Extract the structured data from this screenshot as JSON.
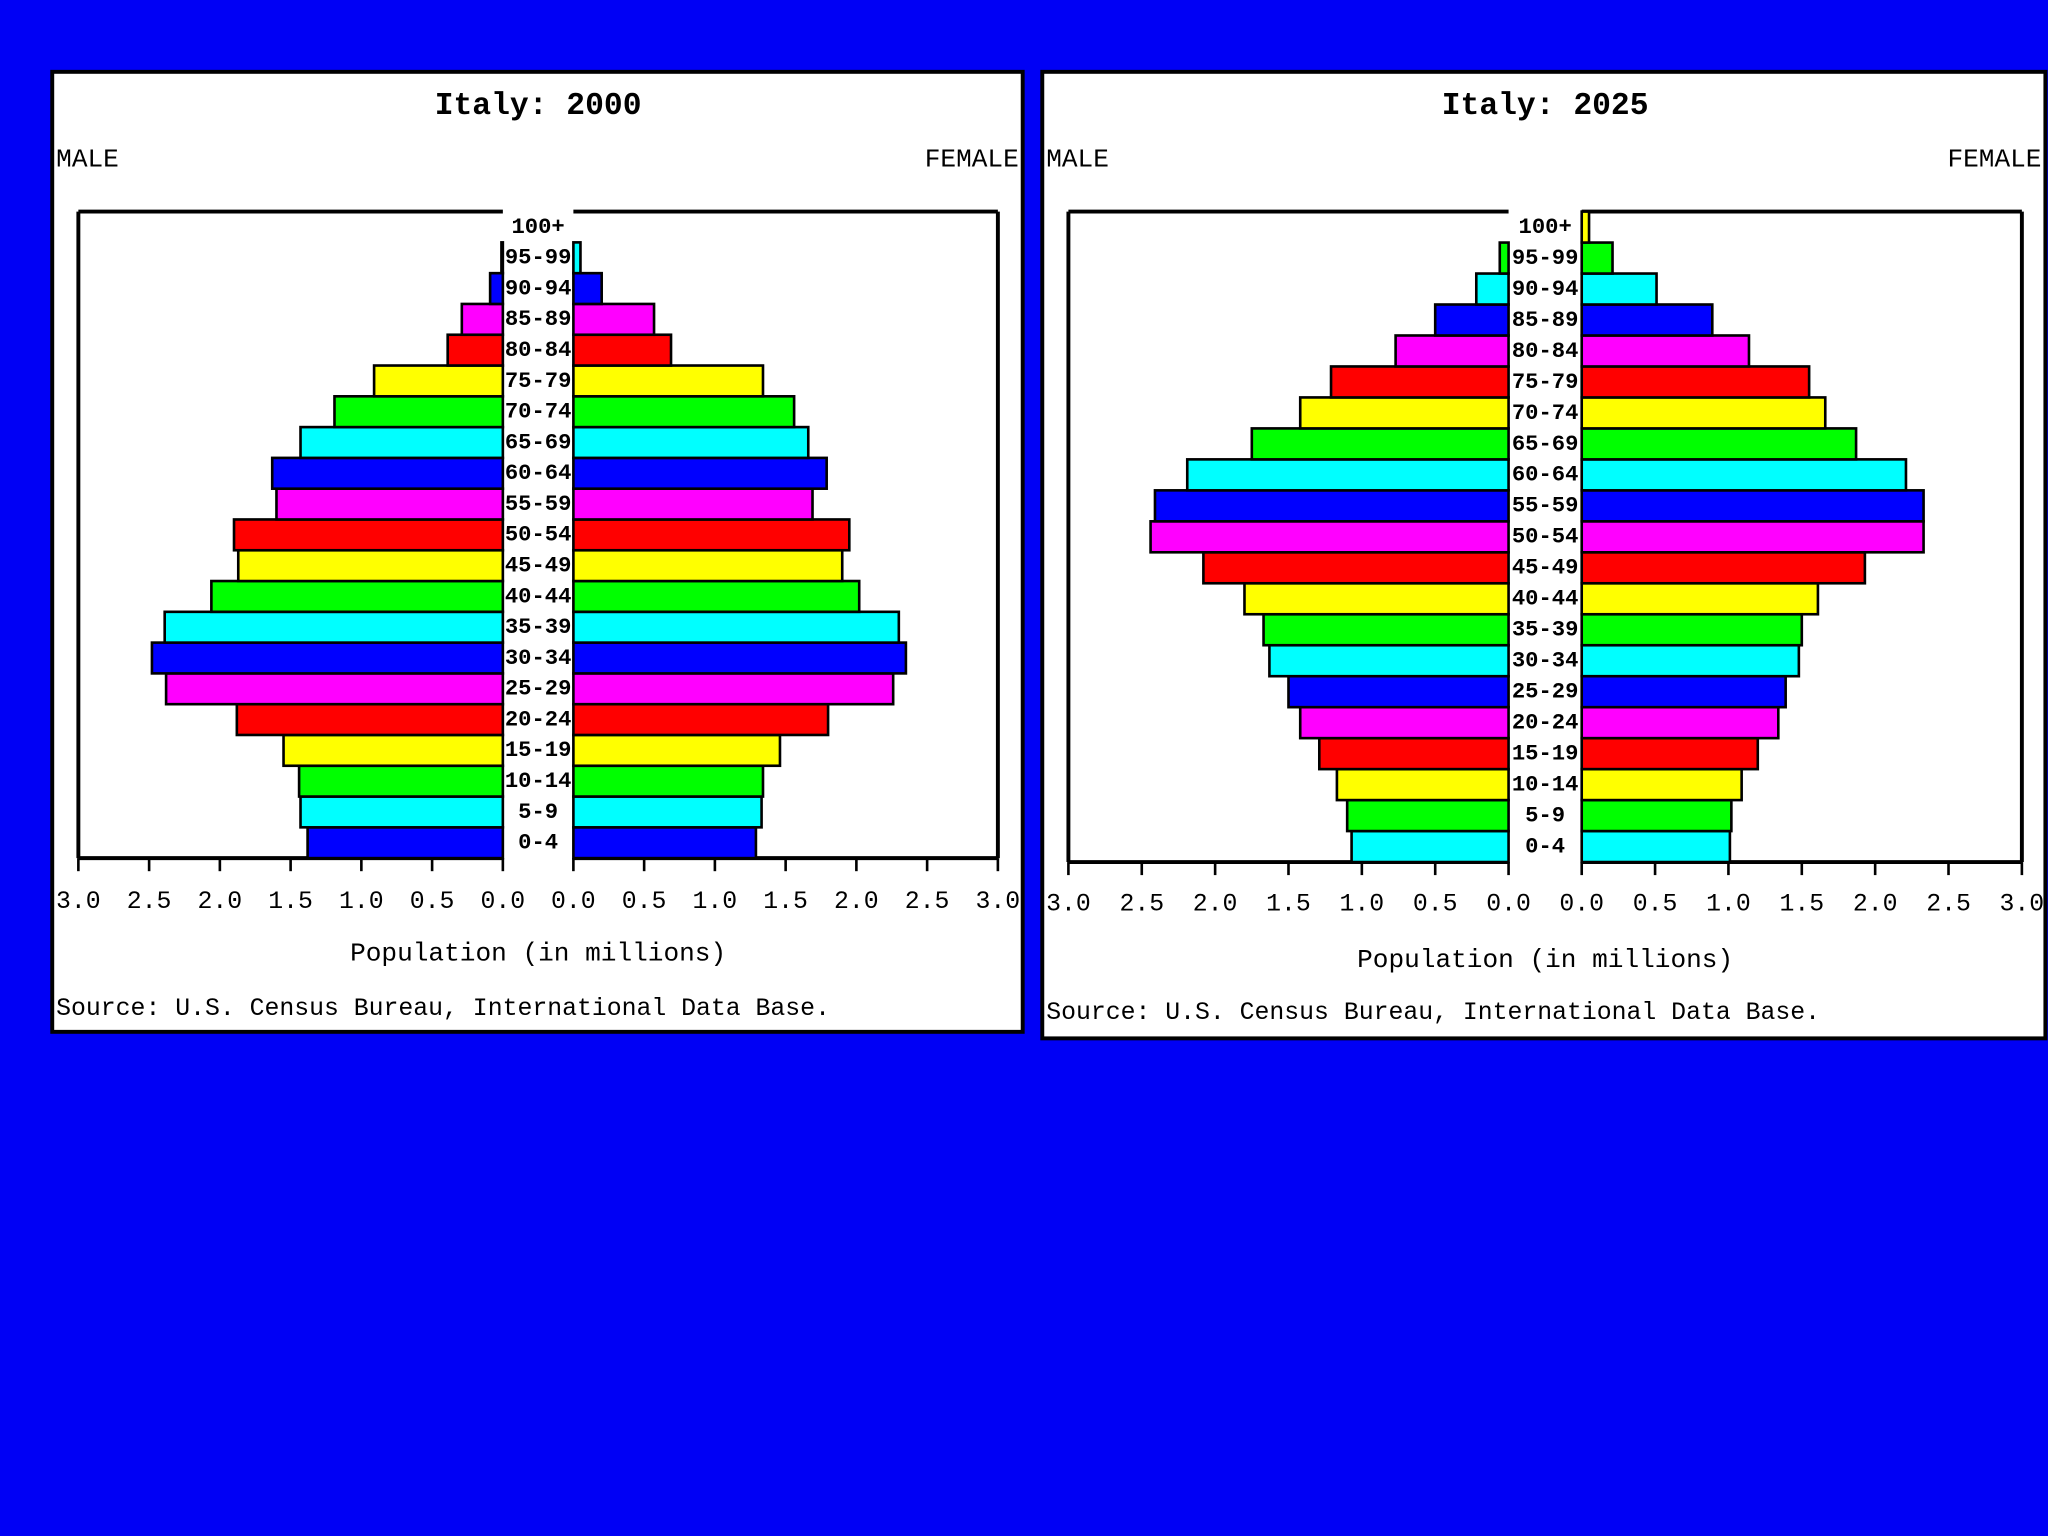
{
  "chart_data": [
    {
      "type": "pyramid",
      "title": "Italy: 2000",
      "categories": [
        "0-4",
        "5-9",
        "10-14",
        "15-19",
        "20-24",
        "25-29",
        "30-34",
        "35-39",
        "40-44",
        "45-49",
        "50-54",
        "55-59",
        "60-64",
        "65-69",
        "70-74",
        "75-79",
        "80-84",
        "85-89",
        "90-94",
        "95-99",
        "100+"
      ],
      "colors": [
        "#0000ff",
        "#00ffff",
        "#00ff00",
        "#ffff00",
        "#ff0000",
        "#ff00ff",
        "#0000ff",
        "#00ffff",
        "#00ff00",
        "#ffff00",
        "#ff0000",
        "#ff00ff",
        "#0000ff",
        "#00ffff",
        "#00ff00",
        "#ffff00",
        "#ff0000",
        "#ff00ff",
        "#0000ff",
        "#00ffff",
        "#00ff00"
      ],
      "series": [
        {
          "name": "MALE",
          "values": [
            1.38,
            1.43,
            1.44,
            1.55,
            1.88,
            2.38,
            2.48,
            2.39,
            2.06,
            1.87,
            1.9,
            1.6,
            1.63,
            1.43,
            1.19,
            0.91,
            0.39,
            0.29,
            0.09,
            0.01,
            0
          ]
        },
        {
          "name": "FEMALE",
          "values": [
            1.29,
            1.33,
            1.34,
            1.46,
            1.8,
            2.26,
            2.35,
            2.3,
            2.02,
            1.9,
            1.95,
            1.69,
            1.79,
            1.66,
            1.56,
            1.34,
            0.69,
            0.57,
            0.2,
            0.05,
            0
          ]
        }
      ],
      "xlim": [
        0,
        3
      ],
      "xticks": [
        {
          "value": 0,
          "label": "0.0"
        },
        0.5,
        {
          "value": 1,
          "label": "1.0"
        },
        1.5,
        {
          "value": 2,
          "label": "2.0"
        },
        2.5,
        {
          "value": 3,
          "label": "3.0"
        }
      ],
      "xlabel": "Population (in millions)",
      "source": "Source: U.S. Census Bureau, International Data Base."
    },
    {
      "type": "pyramid",
      "title": "Italy: 2025",
      "categories": [
        "0-4",
        "5-9",
        "10-14",
        "15-19",
        "20-24",
        "25-29",
        "30-34",
        "35-39",
        "40-44",
        "45-49",
        "50-54",
        "55-59",
        "60-64",
        "65-69",
        "70-74",
        "75-79",
        "80-84",
        "85-89",
        "90-94",
        "95-99",
        "100+"
      ],
      "colors": [
        "#00ffff",
        "#00ff00",
        "#ffff00",
        "#ff0000",
        "#ff00ff",
        "#0000ff",
        "#00ffff",
        "#00ff00",
        "#ffff00",
        "#ff0000",
        "#ff00ff",
        "#0000ff",
        "#00ffff",
        "#00ff00",
        "#ffff00",
        "#ff0000",
        "#ff00ff",
        "#0000ff",
        "#00ffff",
        "#00ff00",
        "#ffff00"
      ],
      "series": [
        {
          "name": "MALE",
          "values": [
            1.07,
            1.1,
            1.17,
            1.29,
            1.42,
            1.5,
            1.63,
            1.67,
            1.8,
            2.08,
            2.44,
            2.41,
            2.19,
            1.75,
            1.42,
            1.21,
            0.77,
            0.5,
            0.22,
            0.06,
            0
          ]
        },
        {
          "name": "FEMALE",
          "values": [
            1.01,
            1.02,
            1.09,
            1.2,
            1.34,
            1.39,
            1.48,
            1.5,
            1.61,
            1.93,
            2.33,
            2.33,
            2.21,
            1.87,
            1.66,
            1.55,
            1.14,
            0.89,
            0.51,
            0.21,
            0.05
          ]
        }
      ],
      "xlim": [
        0,
        3
      ],
      "xticks": [
        {
          "value": 0,
          "label": "0.0"
        },
        0.5,
        {
          "value": 1,
          "label": "1.0"
        },
        1.5,
        {
          "value": 2,
          "label": "2.0"
        },
        2.5,
        {
          "value": 3,
          "label": "3.0"
        }
      ],
      "xlabel": "Population (in millions)",
      "source": "Source: U.S. Census Bureau, International Data Base."
    }
  ]
}
